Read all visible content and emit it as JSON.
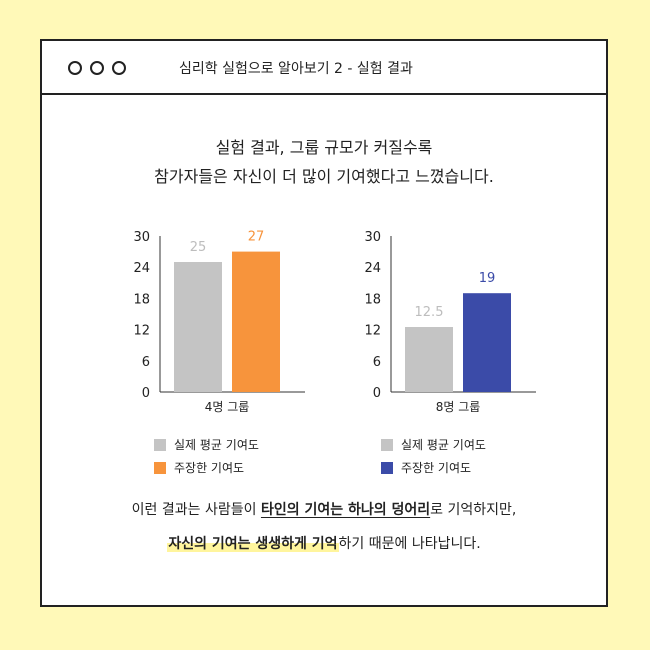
{
  "window": {
    "title": "심리학 실험으로 알아보기 2 - 실험 결과"
  },
  "headline": {
    "line1": "실험 결과, 그룹 규모가 커질수록",
    "line2": "참가자들은 자신이 더 많이 기여했다고 느꼈습니다."
  },
  "colors": {
    "average": "#C4C4C4",
    "claimed_left": "#F7943C",
    "claimed_right": "#3B4BA8"
  },
  "chart_data": [
    {
      "type": "bar",
      "categories": [
        "4명 그룹"
      ],
      "series": [
        {
          "name": "실제 평균 기여도",
          "values": [
            25
          ]
        },
        {
          "name": "주장한 기여도",
          "values": [
            27
          ]
        }
      ],
      "value_labels": [
        "25",
        "27"
      ],
      "yticks": [
        "0",
        "6",
        "12",
        "18",
        "24",
        "30"
      ],
      "ylim": [
        0,
        30
      ],
      "legend_position": "bottom"
    },
    {
      "type": "bar",
      "categories": [
        "8명 그룹"
      ],
      "series": [
        {
          "name": "실제 평균 기여도",
          "values": [
            12.5
          ]
        },
        {
          "name": "주장한 기여도",
          "values": [
            19
          ]
        }
      ],
      "value_labels": [
        "12.5",
        "19"
      ],
      "yticks": [
        "0",
        "6",
        "12",
        "18",
        "24",
        "30"
      ],
      "ylim": [
        0,
        30
      ],
      "legend_position": "bottom"
    }
  ],
  "bottom": {
    "l1a": "이런 결과는 사람들이 ",
    "l1b": "타인의 기여는 하나의 덩어리",
    "l1c": "로 기억하지만,",
    "l2a": "자신의 기여는 생생하게 기억",
    "l2b": "하기 때문에 나타납니다."
  }
}
